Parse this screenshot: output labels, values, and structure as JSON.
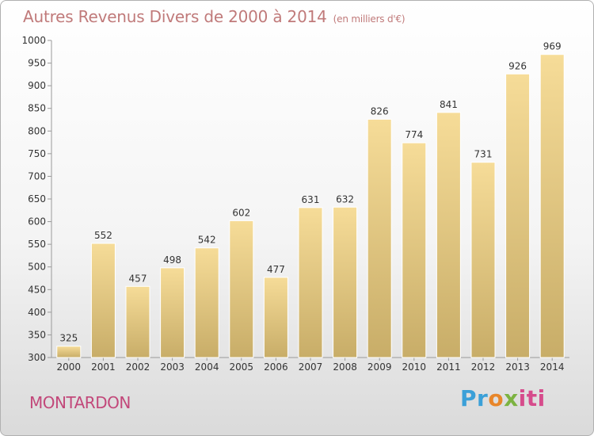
{
  "header": {
    "title": "Autres Revenus Divers de 2000 à 2014",
    "subtitle": "(en milliers d'€)"
  },
  "footer": {
    "commune": "MONTARDON",
    "brand_parts": [
      "Pr",
      "o",
      "x",
      "iti"
    ]
  },
  "colors": {
    "bar_light": "#f6dc98",
    "bar_dark": "#c8ad68",
    "title": "#c07a7a",
    "commune": "#c2487a"
  },
  "chart_data": {
    "type": "bar",
    "title": "Autres Revenus Divers de 2000 à 2014",
    "categories": [
      "2000",
      "2001",
      "2002",
      "2003",
      "2004",
      "2005",
      "2006",
      "2007",
      "2008",
      "2009",
      "2010",
      "2011",
      "2012",
      "2013",
      "2014"
    ],
    "values": [
      325,
      552,
      457,
      498,
      542,
      602,
      477,
      631,
      632,
      826,
      774,
      841,
      731,
      926,
      969
    ],
    "ylim": [
      300,
      1000
    ],
    "yticks": [
      300,
      350,
      400,
      450,
      500,
      550,
      600,
      650,
      700,
      750,
      800,
      850,
      900,
      950,
      1000
    ],
    "grid": false
  }
}
